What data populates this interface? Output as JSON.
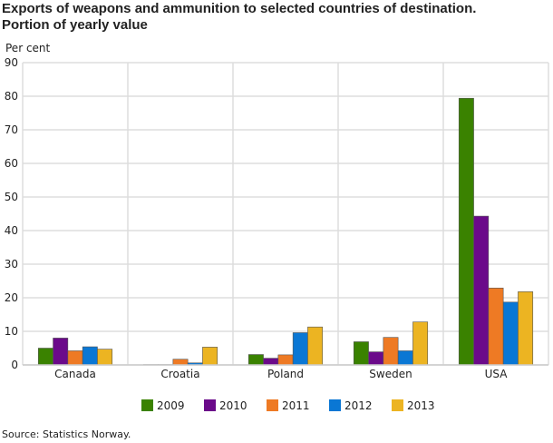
{
  "chart_data": {
    "type": "bar",
    "title": [
      "Exports of weapons and ammunition to selected countries of destination.",
      "Portion of yearly value"
    ],
    "ylabel": "Per cent",
    "ylim": [
      0,
      90
    ],
    "yticks": [
      0,
      10,
      20,
      30,
      40,
      50,
      60,
      70,
      80,
      90
    ],
    "grid": true,
    "legend": "bottom",
    "categories": [
      "Canada",
      "Croatia",
      "Poland",
      "Sweden",
      "USA"
    ],
    "series": [
      {
        "name": "2009",
        "color": "#3a8200",
        "values": [
          5.0,
          0.1,
          3.1,
          6.9,
          79.4
        ]
      },
      {
        "name": "2010",
        "color": "#6b0a8a",
        "values": [
          8.0,
          0.1,
          2.0,
          3.9,
          44.3
        ]
      },
      {
        "name": "2011",
        "color": "#ee7a24",
        "values": [
          4.2,
          1.7,
          3.0,
          8.2,
          22.9
        ]
      },
      {
        "name": "2012",
        "color": "#0a77d4",
        "values": [
          5.4,
          0.6,
          9.6,
          4.2,
          18.7
        ]
      },
      {
        "name": "2013",
        "color": "#ecb422",
        "values": [
          4.7,
          5.3,
          11.3,
          12.8,
          21.8
        ]
      }
    ]
  },
  "source": "Source: Statistics Norway."
}
